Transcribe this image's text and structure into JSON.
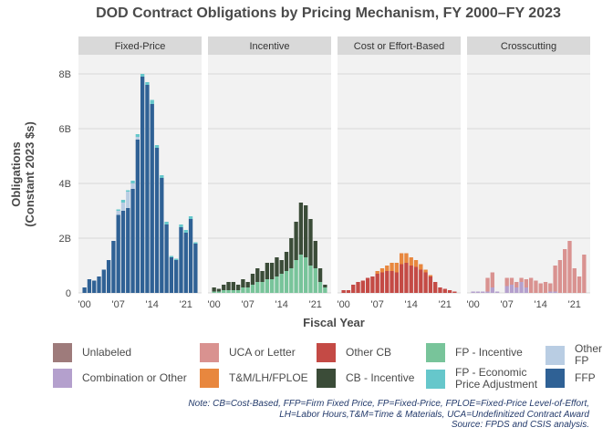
{
  "chart_data": {
    "type": "bar",
    "stacked": true,
    "title": "DOD Contract Obligations by Pricing Mechanism, FY 2000–FY 2023",
    "xlabel": "Fiscal Year",
    "ylabel": "Obligations\n(Constant 2023 $s)",
    "ylim": [
      0,
      8700000000
    ],
    "yticks": [
      0,
      2000000000,
      4000000000,
      6000000000,
      8000000000
    ],
    "ytick_labels": [
      "0",
      "2B",
      "4B",
      "6B",
      "8B"
    ],
    "xticks": [
      2000,
      2007,
      2014,
      2021
    ],
    "xtick_labels": [
      "'00",
      "'07",
      "'14",
      "'21"
    ],
    "years": [
      2000,
      2001,
      2002,
      2003,
      2004,
      2005,
      2006,
      2007,
      2008,
      2009,
      2010,
      2011,
      2012,
      2013,
      2014,
      2015,
      2016,
      2017,
      2018,
      2019,
      2020,
      2021,
      2022,
      2023
    ],
    "series_meta": [
      {
        "key": "unlabeled",
        "name": "Unlabeled",
        "color": "#9e7b7b"
      },
      {
        "key": "combo",
        "name": "Combination or Other",
        "color": "#b4a0cd"
      },
      {
        "key": "uca",
        "name": "UCA or Letter",
        "color": "#d99290"
      },
      {
        "key": "tm",
        "name": "T&M/LH/FPLOE",
        "color": "#e8873e"
      },
      {
        "key": "othercb",
        "name": "Other CB",
        "color": "#c44a45"
      },
      {
        "key": "cbinc",
        "name": "CB - Incentive",
        "color": "#3b4c38"
      },
      {
        "key": "fpinc",
        "name": "FP - Incentive",
        "color": "#78c49a"
      },
      {
        "key": "fpepa",
        "name": "FP - Economic\nPrice Adjustment",
        "color": "#66c7cb"
      },
      {
        "key": "otherfp",
        "name": "Other FP",
        "color": "#b9cde3"
      },
      {
        "key": "ffp",
        "name": "FFP",
        "color": "#2f6195"
      }
    ],
    "panels": [
      {
        "name": "Fixed-Price",
        "series": {
          "ffp": [
            0.2,
            0.5,
            0.45,
            0.6,
            0.85,
            1.2,
            1.9,
            2.85,
            3.0,
            3.1,
            3.8,
            5.6,
            7.9,
            7.6,
            6.9,
            5.3,
            4.2,
            2.5,
            1.3,
            1.2,
            2.4,
            2.2,
            2.7,
            1.8
          ],
          "otherfp": [
            0,
            0,
            0,
            0,
            0,
            0,
            0,
            0.15,
            0.3,
            0.6,
            0.2,
            0.1,
            0,
            0,
            0,
            0,
            0,
            0,
            0,
            0,
            0,
            0,
            0,
            0
          ],
          "fpepa": [
            0,
            0,
            0,
            0,
            0,
            0,
            0,
            0.05,
            0.1,
            0.05,
            0.1,
            0.1,
            0.1,
            0.1,
            0.15,
            0.1,
            0.1,
            0.1,
            0.05,
            0.05,
            0.1,
            0.1,
            0.1,
            0.05
          ]
        }
      },
      {
        "name": "Incentive",
        "series": {
          "fpinc": [
            0.05,
            0.05,
            0.1,
            0.1,
            0.1,
            0.1,
            0.2,
            0.2,
            0.3,
            0.4,
            0.4,
            0.5,
            0.5,
            0.6,
            0.7,
            0.8,
            0.9,
            1.2,
            1.4,
            1.3,
            1.0,
            0.9,
            0.4,
            0.2
          ],
          "cbinc": [
            0.15,
            0.1,
            0.2,
            0.3,
            0.3,
            0.2,
            0.3,
            0.2,
            0.4,
            0.5,
            0.4,
            0.6,
            0.6,
            0.7,
            0.5,
            0.7,
            1.1,
            1.4,
            1.9,
            1.9,
            1.7,
            1.0,
            0.5,
            0.1
          ]
        }
      },
      {
        "name": "Cost or Effort-Based",
        "series": {
          "othercb": [
            0.1,
            0.1,
            0.3,
            0.4,
            0.45,
            0.55,
            0.6,
            0.7,
            0.75,
            0.8,
            0.8,
            0.75,
            1.05,
            1.1,
            1.0,
            0.95,
            0.85,
            0.75,
            0.6,
            0.4,
            0.2,
            0.15,
            0.1,
            0.05
          ],
          "tm": [
            0,
            0,
            0,
            0,
            0,
            0,
            0,
            0.1,
            0.15,
            0.2,
            0.3,
            0.35,
            0.4,
            0.35,
            0.3,
            0.25,
            0.2,
            0.1,
            0.05,
            0,
            0,
            0,
            0,
            0
          ]
        }
      },
      {
        "name": "Crosscutting",
        "series": {
          "unlabeled": [
            0,
            0,
            0,
            0,
            0,
            0,
            0,
            0,
            0,
            0,
            0,
            0,
            0,
            0,
            0,
            0,
            0,
            0,
            0,
            0,
            0,
            0,
            0,
            0
          ],
          "combo": [
            0.05,
            0.05,
            0.05,
            0.05,
            0.2,
            0.05,
            0,
            0.25,
            0.3,
            0.2,
            0.4,
            0.2,
            0,
            0,
            0,
            0,
            0.05,
            0.05,
            0,
            0,
            0,
            0,
            0,
            0
          ],
          "uca": [
            0,
            0,
            0,
            0.5,
            0.55,
            0,
            0,
            0.3,
            0.25,
            0.2,
            0.15,
            0.3,
            0.55,
            0.45,
            0.35,
            0.4,
            0.3,
            0.95,
            1.2,
            1.6,
            1.9,
            0.9,
            0.6,
            1.4
          ]
        }
      }
    ],
    "legend": [
      "Unlabeled",
      "UCA or Letter",
      "Other CB",
      "FP - Incentive",
      "Other FP",
      "Combination or Other",
      "T&M/LH/FPLOE",
      "CB - Incentive",
      "FP - Economic\nPrice Adjustment",
      "FFP"
    ]
  },
  "note": {
    "line1": "Note: CB=Cost-Based, FFP=Firm Fixed Price, FP=Fixed-Price, FPLOE=Fixed-Price Level-of-Effort,",
    "line2": "LH=Labor Hours,T&M=Time & Materials, UCA=Undefinitized Contract Award",
    "line3": "Source: FPDS and CSIS analysis."
  }
}
